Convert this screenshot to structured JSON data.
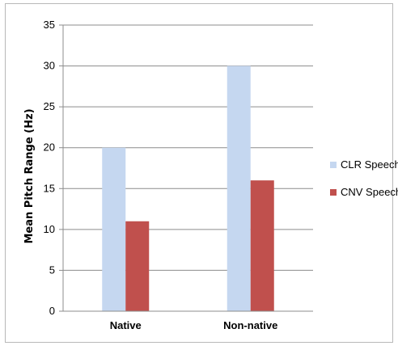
{
  "chart_data": {
    "type": "bar",
    "ylabel": "Mean Pitch Range (Hz)",
    "xlabel": "",
    "title": "",
    "categories": [
      "Native",
      "Non-native"
    ],
    "series": [
      {
        "name": "CLR Speech",
        "values": [
          20,
          30
        ],
        "color": "#c5d7f0"
      },
      {
        "name": "CNV Speech",
        "values": [
          11,
          16
        ],
        "color": "#c0504d"
      }
    ],
    "ylim": [
      0,
      35
    ],
    "yticks": [
      "0",
      "5",
      "10",
      "15",
      "20",
      "25",
      "30",
      "35"
    ],
    "grid": true,
    "legend_position": "right"
  }
}
